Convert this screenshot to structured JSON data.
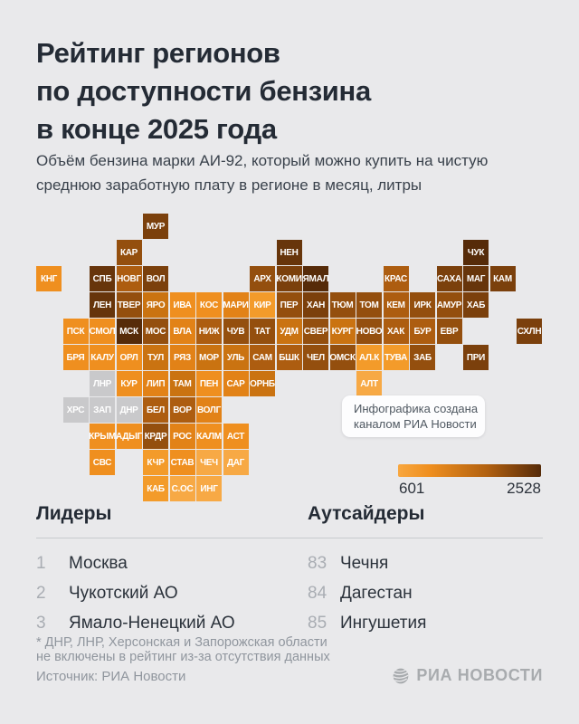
{
  "header": {
    "title_lines": [
      "Рейтинг регионов",
      "по доступности бензина",
      "в конце 2025 года"
    ],
    "subtitle": "Объём бензина марки АИ-92, который можно купить на чистую среднюю заработную плату в регионе в месяц, литры"
  },
  "chart_data": {
    "type": "heatmap",
    "subtype": "tile-grid-cartogram",
    "title": "Рейтинг регионов по доступности бензина в конце 2025 года",
    "unit": "литры",
    "scale": {
      "min": 601,
      "max": 2528
    },
    "legend_position": "right-below-map",
    "palette": {
      "g": "#c9c9cb",
      "1": "#f7a945",
      "2": "#f39b2a",
      "3": "#ef8f1f",
      "4": "#e28217",
      "5": "#ca7311",
      "6": "#ad5d10",
      "7": "#944f0e",
      "8": "#7b400c",
      "9": "#67350b",
      "10": "#562b09"
    },
    "tiles": [
      {
        "code": "МУР",
        "col": 4,
        "row": 0,
        "shade": "8"
      },
      {
        "code": "КАР",
        "col": 3,
        "row": 1,
        "shade": "7"
      },
      {
        "code": "НЕН",
        "col": 9,
        "row": 1,
        "shade": "9"
      },
      {
        "code": "ЧУК",
        "col": 16,
        "row": 1,
        "shade": "10"
      },
      {
        "code": "КНГ",
        "col": 0,
        "row": 2,
        "shade": "3"
      },
      {
        "code": "СПБ",
        "col": 2,
        "row": 2,
        "shade": "9"
      },
      {
        "code": "НОВГ",
        "col": 3,
        "row": 2,
        "shade": "6"
      },
      {
        "code": "ВОЛ",
        "col": 4,
        "row": 2,
        "shade": "8"
      },
      {
        "code": "АРХ",
        "col": 8,
        "row": 2,
        "shade": "7"
      },
      {
        "code": "КОМИ",
        "col": 9,
        "row": 2,
        "shade": "8"
      },
      {
        "code": "ЯМАЛ",
        "col": 10,
        "row": 2,
        "shade": "10"
      },
      {
        "code": "КРАС",
        "col": 13,
        "row": 2,
        "shade": "6"
      },
      {
        "code": "САХА",
        "col": 15,
        "row": 2,
        "shade": "8"
      },
      {
        "code": "МАГ",
        "col": 16,
        "row": 2,
        "shade": "9"
      },
      {
        "code": "КАМ",
        "col": 17,
        "row": 2,
        "shade": "8"
      },
      {
        "code": "ЛЕН",
        "col": 2,
        "row": 3,
        "shade": "9"
      },
      {
        "code": "ТВЕР",
        "col": 3,
        "row": 3,
        "shade": "7"
      },
      {
        "code": "ЯРО",
        "col": 4,
        "row": 3,
        "shade": "5"
      },
      {
        "code": "ИВА",
        "col": 5,
        "row": 3,
        "shade": "3"
      },
      {
        "code": "КОС",
        "col": 6,
        "row": 3,
        "shade": "3"
      },
      {
        "code": "МАРИ",
        "col": 7,
        "row": 3,
        "shade": "4"
      },
      {
        "code": "КИР",
        "col": 8,
        "row": 3,
        "shade": "2"
      },
      {
        "code": "ПЕР",
        "col": 9,
        "row": 3,
        "shade": "7"
      },
      {
        "code": "ХАН",
        "col": 10,
        "row": 3,
        "shade": "8"
      },
      {
        "code": "ТЮМ",
        "col": 11,
        "row": 3,
        "shade": "7"
      },
      {
        "code": "ТОМ",
        "col": 12,
        "row": 3,
        "shade": "7"
      },
      {
        "code": "КЕМ",
        "col": 13,
        "row": 3,
        "shade": "6"
      },
      {
        "code": "ИРК",
        "col": 14,
        "row": 3,
        "shade": "7"
      },
      {
        "code": "АМУР",
        "col": 15,
        "row": 3,
        "shade": "7"
      },
      {
        "code": "ХАБ",
        "col": 16,
        "row": 3,
        "shade": "8"
      },
      {
        "code": "ПСК",
        "col": 1,
        "row": 4,
        "shade": "3"
      },
      {
        "code": "СМОЛ",
        "col": 2,
        "row": 4,
        "shade": "3"
      },
      {
        "code": "МСК",
        "col": 3,
        "row": 4,
        "shade": "10"
      },
      {
        "code": "МОС",
        "col": 4,
        "row": 4,
        "shade": "7"
      },
      {
        "code": "ВЛА",
        "col": 5,
        "row": 4,
        "shade": "4"
      },
      {
        "code": "НИЖ",
        "col": 6,
        "row": 4,
        "shade": "6"
      },
      {
        "code": "ЧУВ",
        "col": 7,
        "row": 4,
        "shade": "7"
      },
      {
        "code": "ТАТ",
        "col": 8,
        "row": 4,
        "shade": "7"
      },
      {
        "code": "УДМ",
        "col": 9,
        "row": 4,
        "shade": "5"
      },
      {
        "code": "СВЕР",
        "col": 10,
        "row": 4,
        "shade": "7"
      },
      {
        "code": "КУРГ",
        "col": 11,
        "row": 4,
        "shade": "5"
      },
      {
        "code": "НОВО",
        "col": 12,
        "row": 4,
        "shade": "7"
      },
      {
        "code": "ХАК",
        "col": 13,
        "row": 4,
        "shade": "6"
      },
      {
        "code": "БУР",
        "col": 14,
        "row": 4,
        "shade": "6"
      },
      {
        "code": "ЕВР",
        "col": 15,
        "row": 4,
        "shade": "7"
      },
      {
        "code": "СХЛН",
        "col": 18,
        "row": 4,
        "shade": "8"
      },
      {
        "code": "БРЯ",
        "col": 1,
        "row": 5,
        "shade": "3"
      },
      {
        "code": "КАЛУ",
        "col": 2,
        "row": 5,
        "shade": "3"
      },
      {
        "code": "ОРЛ",
        "col": 3,
        "row": 5,
        "shade": "3"
      },
      {
        "code": "ТУЛ",
        "col": 4,
        "row": 5,
        "shade": "5"
      },
      {
        "code": "РЯЗ",
        "col": 5,
        "row": 5,
        "shade": "4"
      },
      {
        "code": "МОР",
        "col": 6,
        "row": 5,
        "shade": "5"
      },
      {
        "code": "УЛЬ",
        "col": 7,
        "row": 5,
        "shade": "5"
      },
      {
        "code": "САМ",
        "col": 8,
        "row": 5,
        "shade": "6"
      },
      {
        "code": "БШК",
        "col": 9,
        "row": 5,
        "shade": "6"
      },
      {
        "code": "ЧЕЛ",
        "col": 10,
        "row": 5,
        "shade": "7"
      },
      {
        "code": "ОМСК",
        "col": 11,
        "row": 5,
        "shade": "7"
      },
      {
        "code": "АЛ.К",
        "col": 12,
        "row": 5,
        "shade": "2"
      },
      {
        "code": "ТУВА",
        "col": 13,
        "row": 5,
        "shade": "2"
      },
      {
        "code": "ЗАБ",
        "col": 14,
        "row": 5,
        "shade": "7"
      },
      {
        "code": "ПРИ",
        "col": 16,
        "row": 5,
        "shade": "8"
      },
      {
        "code": "ЛНР",
        "col": 2,
        "row": 6,
        "shade": "g"
      },
      {
        "code": "КУР",
        "col": 3,
        "row": 6,
        "shade": "3"
      },
      {
        "code": "ЛИП",
        "col": 4,
        "row": 6,
        "shade": "4"
      },
      {
        "code": "ТАМ",
        "col": 5,
        "row": 6,
        "shade": "5"
      },
      {
        "code": "ПЕН",
        "col": 6,
        "row": 6,
        "shade": "3"
      },
      {
        "code": "САР",
        "col": 7,
        "row": 6,
        "shade": "4"
      },
      {
        "code": "ОРНБ",
        "col": 8,
        "row": 6,
        "shade": "5"
      },
      {
        "code": "АЛТ",
        "col": 12,
        "row": 6,
        "shade": "1"
      },
      {
        "code": "ХРС",
        "col": 1,
        "row": 7,
        "shade": "g"
      },
      {
        "code": "ЗАП",
        "col": 2,
        "row": 7,
        "shade": "g"
      },
      {
        "code": "ДНР",
        "col": 3,
        "row": 7,
        "shade": "g"
      },
      {
        "code": "БЕЛ",
        "col": 4,
        "row": 7,
        "shade": "6"
      },
      {
        "code": "ВОР",
        "col": 5,
        "row": 7,
        "shade": "6"
      },
      {
        "code": "ВОЛГ",
        "col": 6,
        "row": 7,
        "shade": "4"
      },
      {
        "code": "КРЫМ",
        "col": 2,
        "row": 8,
        "shade": "3"
      },
      {
        "code": "АДЫГ",
        "col": 3,
        "row": 8,
        "shade": "3"
      },
      {
        "code": "КРДР",
        "col": 4,
        "row": 8,
        "shade": "7"
      },
      {
        "code": "РОС",
        "col": 5,
        "row": 8,
        "shade": "4"
      },
      {
        "code": "КАЛМ",
        "col": 6,
        "row": 8,
        "shade": "3"
      },
      {
        "code": "АСТ",
        "col": 7,
        "row": 8,
        "shade": "3"
      },
      {
        "code": "СВС",
        "col": 2,
        "row": 9,
        "shade": "3"
      },
      {
        "code": "КЧР",
        "col": 4,
        "row": 9,
        "shade": "2"
      },
      {
        "code": "СТАВ",
        "col": 5,
        "row": 9,
        "shade": "3"
      },
      {
        "code": "ЧЕЧ",
        "col": 6,
        "row": 9,
        "shade": "1"
      },
      {
        "code": "ДАГ",
        "col": 7,
        "row": 9,
        "shade": "1"
      },
      {
        "code": "КАБ",
        "col": 4,
        "row": 10,
        "shade": "2"
      },
      {
        "code": "С.ОС",
        "col": 5,
        "row": 10,
        "shade": "1"
      },
      {
        "code": "ИНГ",
        "col": 6,
        "row": 10,
        "shade": "1"
      }
    ]
  },
  "annotation": {
    "lines": [
      "Инфографика создана",
      "каналом РИА Новости"
    ]
  },
  "legend": {
    "min_label": "601",
    "max_label": "2528"
  },
  "leaders": {
    "heading": "Лидеры",
    "items": [
      {
        "rank": "1",
        "name": "Москва"
      },
      {
        "rank": "2",
        "name": "Чукотский АО"
      },
      {
        "rank": "3",
        "name": "Ямало-Ненецкий АО"
      }
    ]
  },
  "outsiders": {
    "heading": "Аутсайдеры",
    "items": [
      {
        "rank": "83",
        "name": "Чечня"
      },
      {
        "rank": "84",
        "name": "Дагестан"
      },
      {
        "rank": "85",
        "name": "Ингушетия"
      }
    ]
  },
  "footnote_lines": [
    "* ДНР, ЛНР, Херсонская и Запорожская области",
    "не включены в рейтинг из-за отсутствия данных"
  ],
  "source": "Источник: РИА Новости",
  "logo_text": "РИА НОВОСТИ"
}
